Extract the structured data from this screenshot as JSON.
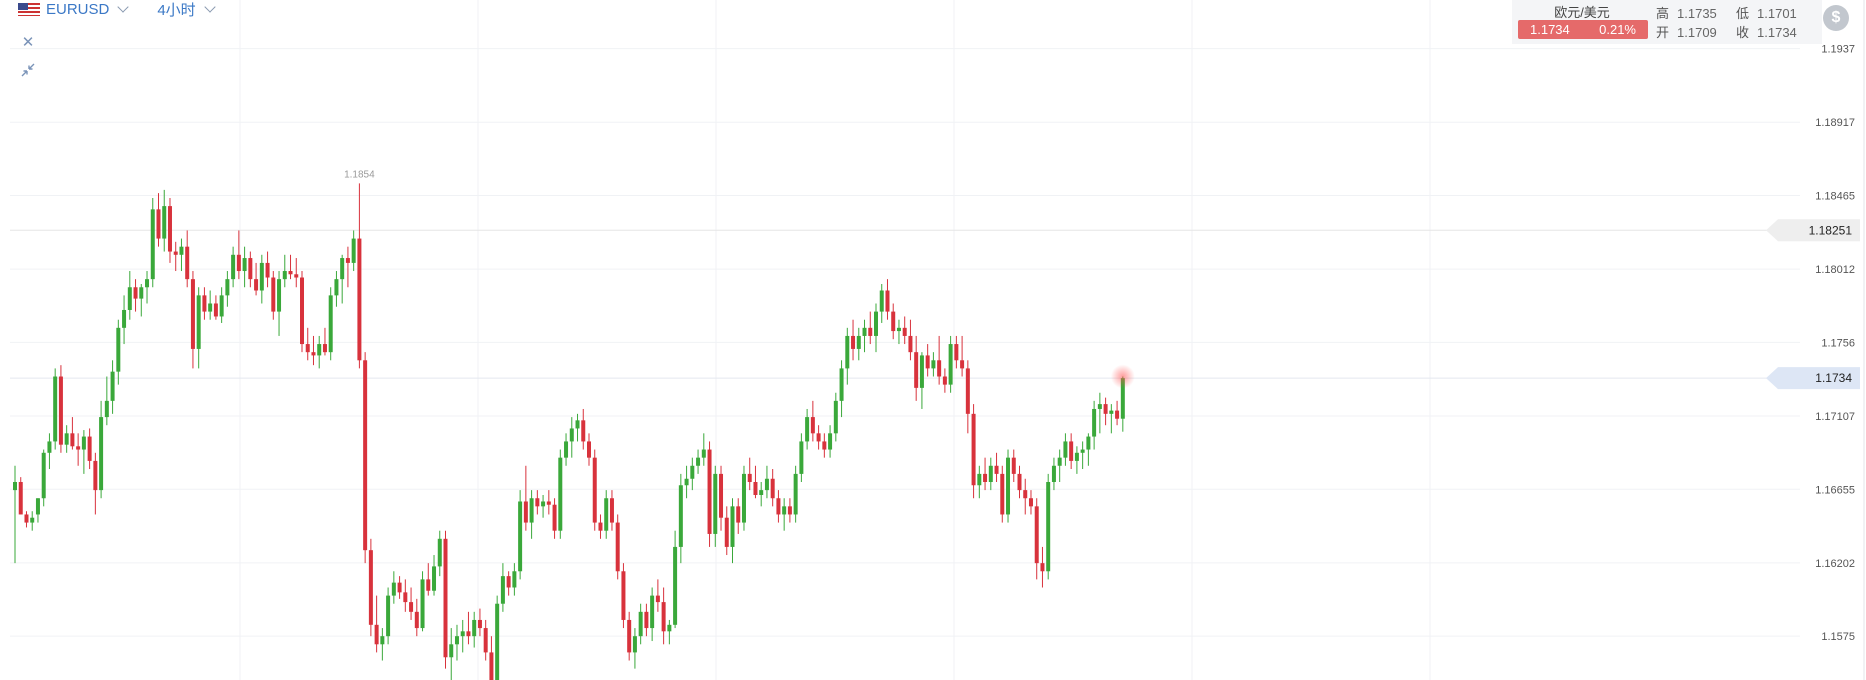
{
  "header": {
    "symbol": "EURUSD",
    "timeframe": "4小时"
  },
  "info": {
    "pair_name": "欧元/美元",
    "last_price": "1.1734",
    "change_pct": "0.21%",
    "high_label": "高",
    "high_value": "1.1735",
    "low_label": "低",
    "low_value": "1.1701",
    "open_label": "开",
    "open_value": "1.1709",
    "close_label": "收",
    "close_value": "1.1734"
  },
  "icons": {
    "close": "close-icon",
    "collapse": "collapse-icon",
    "dollar": "dollar-icon",
    "flag": "us-flag-icon"
  },
  "colors": {
    "up": "#3aa83a",
    "down": "#d8323c",
    "current_tag": "#dde6f5",
    "crosshair_tag": "#eeeeee",
    "badge": "#e56a6a"
  },
  "chart_data": {
    "type": "candlestick",
    "y_ticks": [
      "1.1937",
      "1.18917",
      "1.18465",
      "1.18012",
      "1.1756",
      "1.17107",
      "1.16655",
      "1.16202",
      "1.1575"
    ],
    "ylim": [
      1.1548,
      1.1967
    ],
    "current_price_label": "1.1734",
    "current_price": 1.1734,
    "crosshair_price_label": "1.18251",
    "crosshair_price": 1.18251,
    "max_label": "1.1854",
    "max_label_index": 60,
    "grid": true,
    "candles": [
      [
        1.1665,
        1.168,
        1.162,
        1.167
      ],
      [
        1.167,
        1.1673,
        1.165,
        1.165
      ],
      [
        1.165,
        1.1652,
        1.1642,
        1.1645
      ],
      [
        1.1645,
        1.1652,
        1.164,
        1.1648
      ],
      [
        1.165,
        1.166,
        1.1645,
        1.166
      ],
      [
        1.166,
        1.169,
        1.1655,
        1.1688
      ],
      [
        1.1688,
        1.17,
        1.1678,
        1.1695
      ],
      [
        1.1695,
        1.174,
        1.169,
        1.1735
      ],
      [
        1.1735,
        1.1742,
        1.1688,
        1.1693
      ],
      [
        1.1693,
        1.1705,
        1.1688,
        1.17
      ],
      [
        1.17,
        1.171,
        1.169,
        1.1692
      ],
      [
        1.1692,
        1.17,
        1.168,
        1.169
      ],
      [
        1.169,
        1.1702,
        1.1675,
        1.1698
      ],
      [
        1.1698,
        1.1703,
        1.1678,
        1.1683
      ],
      [
        1.1683,
        1.1688,
        1.165,
        1.1665
      ],
      [
        1.1665,
        1.172,
        1.166,
        1.171
      ],
      [
        1.171,
        1.1735,
        1.1705,
        1.172
      ],
      [
        1.172,
        1.1745,
        1.1712,
        1.1738
      ],
      [
        1.1738,
        1.177,
        1.173,
        1.1765
      ],
      [
        1.1765,
        1.1785,
        1.1755,
        1.1776
      ],
      [
        1.1776,
        1.18,
        1.177,
        1.179
      ],
      [
        1.179,
        1.1795,
        1.1775,
        1.1783
      ],
      [
        1.1783,
        1.1792,
        1.1772,
        1.179
      ],
      [
        1.179,
        1.18,
        1.178,
        1.1795
      ],
      [
        1.1795,
        1.1845,
        1.179,
        1.1838
      ],
      [
        1.1838,
        1.1848,
        1.1815,
        1.182
      ],
      [
        1.182,
        1.185,
        1.1812,
        1.184
      ],
      [
        1.184,
        1.1845,
        1.1805,
        1.1812
      ],
      [
        1.1812,
        1.1818,
        1.18,
        1.181
      ],
      [
        1.181,
        1.182,
        1.18,
        1.1815
      ],
      [
        1.1815,
        1.1825,
        1.179,
        1.1795
      ],
      [
        1.1795,
        1.18,
        1.174,
        1.1752
      ],
      [
        1.1752,
        1.179,
        1.174,
        1.1785
      ],
      [
        1.1785,
        1.179,
        1.177,
        1.1775
      ],
      [
        1.1775,
        1.1788,
        1.177,
        1.178
      ],
      [
        1.178,
        1.1785,
        1.177,
        1.1772
      ],
      [
        1.1772,
        1.179,
        1.1768,
        1.1785
      ],
      [
        1.1785,
        1.18,
        1.1778,
        1.1795
      ],
      [
        1.1795,
        1.1815,
        1.179,
        1.181
      ],
      [
        1.181,
        1.1825,
        1.1795,
        1.18
      ],
      [
        1.18,
        1.1815,
        1.179,
        1.1808
      ],
      [
        1.1808,
        1.1812,
        1.179,
        1.1795
      ],
      [
        1.1795,
        1.1805,
        1.1785,
        1.1788
      ],
      [
        1.1788,
        1.181,
        1.178,
        1.1805
      ],
      [
        1.1805,
        1.1812,
        1.179,
        1.1796
      ],
      [
        1.1796,
        1.18,
        1.177,
        1.1775
      ],
      [
        1.1775,
        1.18,
        1.176,
        1.1795
      ],
      [
        1.1795,
        1.181,
        1.179,
        1.18
      ],
      [
        1.18,
        1.181,
        1.1795,
        1.1798
      ],
      [
        1.1798,
        1.1808,
        1.179,
        1.1796
      ],
      [
        1.1796,
        1.18,
        1.175,
        1.1755
      ],
      [
        1.1755,
        1.1765,
        1.1745,
        1.175
      ],
      [
        1.175,
        1.176,
        1.1742,
        1.1748
      ],
      [
        1.1748,
        1.176,
        1.174,
        1.1755
      ],
      [
        1.1755,
        1.1765,
        1.1748,
        1.175
      ],
      [
        1.175,
        1.179,
        1.1745,
        1.1785
      ],
      [
        1.1785,
        1.18,
        1.1778,
        1.1795
      ],
      [
        1.1795,
        1.181,
        1.178,
        1.1808
      ],
      [
        1.1808,
        1.1815,
        1.179,
        1.1805
      ],
      [
        1.1805,
        1.1825,
        1.18,
        1.182
      ],
      [
        1.182,
        1.1854,
        1.174,
        1.1745
      ],
      [
        1.1745,
        1.175,
        1.162,
        1.1628
      ],
      [
        1.1628,
        1.1635,
        1.1575,
        1.1582
      ],
      [
        1.1582,
        1.16,
        1.1565,
        1.157
      ],
      [
        1.157,
        1.158,
        1.156,
        1.1575
      ],
      [
        1.1575,
        1.1605,
        1.157,
        1.16
      ],
      [
        1.16,
        1.1615,
        1.1595,
        1.1608
      ],
      [
        1.1608,
        1.1612,
        1.1598,
        1.1602
      ],
      [
        1.1602,
        1.161,
        1.159,
        1.1596
      ],
      [
        1.1596,
        1.1605,
        1.1585,
        1.159
      ],
      [
        1.159,
        1.1598,
        1.1575,
        1.158
      ],
      [
        1.158,
        1.1615,
        1.1578,
        1.161
      ],
      [
        1.161,
        1.162,
        1.16,
        1.1603
      ],
      [
        1.1603,
        1.1625,
        1.16,
        1.1618
      ],
      [
        1.1618,
        1.164,
        1.1612,
        1.1635
      ],
      [
        1.1635,
        1.164,
        1.1555,
        1.1562
      ],
      [
        1.1562,
        1.158,
        1.154,
        1.157
      ],
      [
        1.157,
        1.1582,
        1.156,
        1.1575
      ],
      [
        1.1575,
        1.1585,
        1.1565,
        1.1578
      ],
      [
        1.1578,
        1.159,
        1.157,
        1.1575
      ],
      [
        1.1575,
        1.159,
        1.1568,
        1.1585
      ],
      [
        1.1585,
        1.1592,
        1.1575,
        1.158
      ],
      [
        1.158,
        1.1585,
        1.156,
        1.1565
      ],
      [
        1.1565,
        1.1575,
        1.154,
        1.1548
      ],
      [
        1.1548,
        1.16,
        1.1545,
        1.1595
      ],
      [
        1.1595,
        1.162,
        1.159,
        1.1612
      ],
      [
        1.1612,
        1.1615,
        1.16,
        1.1605
      ],
      [
        1.1605,
        1.162,
        1.16,
        1.1615
      ],
      [
        1.1615,
        1.1665,
        1.161,
        1.1658
      ],
      [
        1.1658,
        1.168,
        1.164,
        1.1645
      ],
      [
        1.1645,
        1.1665,
        1.1635,
        1.166
      ],
      [
        1.166,
        1.1665,
        1.165,
        1.1655
      ],
      [
        1.1655,
        1.1662,
        1.1648,
        1.1658
      ],
      [
        1.1658,
        1.1665,
        1.165,
        1.1656
      ],
      [
        1.1656,
        1.166,
        1.1635,
        1.164
      ],
      [
        1.164,
        1.169,
        1.1635,
        1.1685
      ],
      [
        1.1685,
        1.17,
        1.168,
        1.1695
      ],
      [
        1.1695,
        1.171,
        1.1685,
        1.1703
      ],
      [
        1.1703,
        1.1712,
        1.1695,
        1.1708
      ],
      [
        1.1708,
        1.1715,
        1.169,
        1.1695
      ],
      [
        1.1695,
        1.17,
        1.168,
        1.1685
      ],
      [
        1.1685,
        1.169,
        1.164,
        1.1645
      ],
      [
        1.1645,
        1.165,
        1.1635,
        1.164
      ],
      [
        1.164,
        1.1665,
        1.1635,
        1.166
      ],
      [
        1.166,
        1.1665,
        1.164,
        1.1645
      ],
      [
        1.1645,
        1.165,
        1.161,
        1.1615
      ],
      [
        1.1615,
        1.162,
        1.158,
        1.1585
      ],
      [
        1.1585,
        1.159,
        1.156,
        1.1565
      ],
      [
        1.1565,
        1.158,
        1.1555,
        1.1575
      ],
      [
        1.1575,
        1.1595,
        1.157,
        1.159
      ],
      [
        1.159,
        1.1595,
        1.1575,
        1.158
      ],
      [
        1.158,
        1.1605,
        1.1572,
        1.16
      ],
      [
        1.16,
        1.161,
        1.159,
        1.1596
      ],
      [
        1.1596,
        1.1605,
        1.157,
        1.1578
      ],
      [
        1.1578,
        1.1585,
        1.157,
        1.1582
      ],
      [
        1.1582,
        1.164,
        1.158,
        1.163
      ],
      [
        1.163,
        1.1675,
        1.162,
        1.1668
      ],
      [
        1.1668,
        1.168,
        1.166,
        1.1672
      ],
      [
        1.1672,
        1.1685,
        1.1665,
        1.168
      ],
      [
        1.168,
        1.169,
        1.1675,
        1.1685
      ],
      [
        1.1685,
        1.17,
        1.168,
        1.169
      ],
      [
        1.169,
        1.1695,
        1.163,
        1.1638
      ],
      [
        1.1638,
        1.168,
        1.163,
        1.1675
      ],
      [
        1.1675,
        1.168,
        1.164,
        1.1648
      ],
      [
        1.1648,
        1.1655,
        1.1625,
        1.163
      ],
      [
        1.163,
        1.166,
        1.162,
        1.1655
      ],
      [
        1.1655,
        1.166,
        1.1638,
        1.1645
      ],
      [
        1.1645,
        1.168,
        1.164,
        1.1675
      ],
      [
        1.1675,
        1.1685,
        1.1665,
        1.167
      ],
      [
        1.167,
        1.168,
        1.166,
        1.1662
      ],
      [
        1.1662,
        1.167,
        1.1655,
        1.1665
      ],
      [
        1.1665,
        1.168,
        1.166,
        1.1672
      ],
      [
        1.1672,
        1.1678,
        1.1655,
        1.166
      ],
      [
        1.166,
        1.1665,
        1.1645,
        1.165
      ],
      [
        1.165,
        1.166,
        1.164,
        1.1655
      ],
      [
        1.1655,
        1.166,
        1.1645,
        1.165
      ],
      [
        1.165,
        1.168,
        1.1645,
        1.1675
      ],
      [
        1.1675,
        1.17,
        1.167,
        1.1695
      ],
      [
        1.1695,
        1.1715,
        1.169,
        1.171
      ],
      [
        1.171,
        1.172,
        1.1695,
        1.17
      ],
      [
        1.17,
        1.1705,
        1.169,
        1.1695
      ],
      [
        1.1695,
        1.17,
        1.1685,
        1.169
      ],
      [
        1.169,
        1.1705,
        1.1685,
        1.17
      ],
      [
        1.17,
        1.1725,
        1.1695,
        1.172
      ],
      [
        1.172,
        1.1745,
        1.171,
        1.174
      ],
      [
        1.174,
        1.1765,
        1.173,
        1.176
      ],
      [
        1.176,
        1.177,
        1.1745,
        1.1752
      ],
      [
        1.1752,
        1.1765,
        1.1745,
        1.176
      ],
      [
        1.176,
        1.177,
        1.175,
        1.1765
      ],
      [
        1.1765,
        1.1775,
        1.1755,
        1.176
      ],
      [
        1.176,
        1.178,
        1.175,
        1.1775
      ],
      [
        1.1775,
        1.1792,
        1.1768,
        1.1788
      ],
      [
        1.1788,
        1.1795,
        1.177,
        1.1775
      ],
      [
        1.1775,
        1.178,
        1.1758,
        1.1763
      ],
      [
        1.1763,
        1.177,
        1.1755,
        1.1765
      ],
      [
        1.1765,
        1.1772,
        1.1755,
        1.176
      ],
      [
        1.176,
        1.177,
        1.1745,
        1.175
      ],
      [
        1.175,
        1.176,
        1.172,
        1.1728
      ],
      [
        1.1728,
        1.175,
        1.1715,
        1.1748
      ],
      [
        1.1748,
        1.1755,
        1.1735,
        1.174
      ],
      [
        1.174,
        1.175,
        1.1735,
        1.1745
      ],
      [
        1.1745,
        1.176,
        1.173,
        1.1735
      ],
      [
        1.1735,
        1.174,
        1.1725,
        1.173
      ],
      [
        1.173,
        1.176,
        1.1725,
        1.1755
      ],
      [
        1.1755,
        1.176,
        1.174,
        1.1745
      ],
      [
        1.1745,
        1.176,
        1.1735,
        1.174
      ],
      [
        1.174,
        1.1745,
        1.17,
        1.1712
      ],
      [
        1.1712,
        1.1718,
        1.166,
        1.1668
      ],
      [
        1.1668,
        1.168,
        1.166,
        1.1675
      ],
      [
        1.1675,
        1.1685,
        1.1665,
        1.167
      ],
      [
        1.167,
        1.1685,
        1.1665,
        1.168
      ],
      [
        1.168,
        1.1688,
        1.167,
        1.1675
      ],
      [
        1.1675,
        1.168,
        1.1645,
        1.165
      ],
      [
        1.165,
        1.169,
        1.1645,
        1.1685
      ],
      [
        1.1685,
        1.169,
        1.167,
        1.1675
      ],
      [
        1.1675,
        1.168,
        1.166,
        1.1665
      ],
      [
        1.1665,
        1.1672,
        1.165,
        1.166
      ],
      [
        1.166,
        1.1665,
        1.165,
        1.1655
      ],
      [
        1.1655,
        1.166,
        1.161,
        1.162
      ],
      [
        1.162,
        1.163,
        1.1605,
        1.1615
      ],
      [
        1.1615,
        1.1675,
        1.161,
        1.167
      ],
      [
        1.167,
        1.1685,
        1.1665,
        1.168
      ],
      [
        1.168,
        1.169,
        1.167,
        1.1685
      ],
      [
        1.1685,
        1.17,
        1.168,
        1.1695
      ],
      [
        1.1695,
        1.17,
        1.1678,
        1.1683
      ],
      [
        1.1683,
        1.1692,
        1.1675,
        1.1688
      ],
      [
        1.1688,
        1.1695,
        1.1678,
        1.169
      ],
      [
        1.169,
        1.17,
        1.168,
        1.1698
      ],
      [
        1.1698,
        1.172,
        1.169,
        1.1715
      ],
      [
        1.1715,
        1.1725,
        1.17,
        1.1718
      ],
      [
        1.1718,
        1.1722,
        1.1705,
        1.1712
      ],
      [
        1.1712,
        1.1718,
        1.17,
        1.1714
      ],
      [
        1.1714,
        1.172,
        1.1705,
        1.1709
      ],
      [
        1.1709,
        1.1735,
        1.1701,
        1.1734
      ]
    ]
  }
}
